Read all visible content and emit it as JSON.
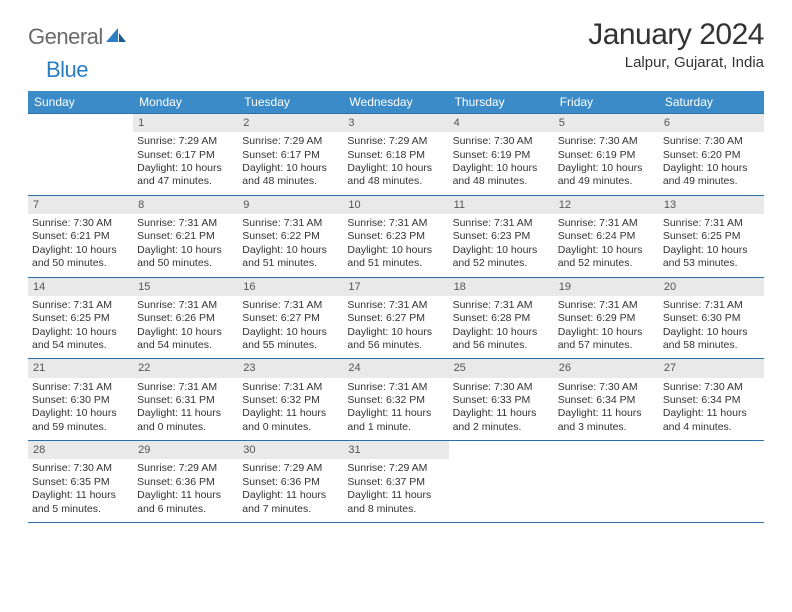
{
  "brand": {
    "name_a": "General",
    "name_b": "Blue"
  },
  "title": "January 2024",
  "location": "Lalpur, Gujarat, India",
  "colors": {
    "header_bg": "#3b8bc8",
    "header_fg": "#ffffff",
    "rule": "#2a6fa5",
    "daynum_bg": "#e9e9e9",
    "logo_gray": "#6b6b6b",
    "logo_blue": "#2a7ec5"
  },
  "day_headers": [
    "Sunday",
    "Monday",
    "Tuesday",
    "Wednesday",
    "Thursday",
    "Friday",
    "Saturday"
  ],
  "weeks": [
    [
      {
        "day": "",
        "lines": []
      },
      {
        "day": "1",
        "lines": [
          "Sunrise: 7:29 AM",
          "Sunset: 6:17 PM",
          "Daylight: 10 hours",
          "and 47 minutes."
        ]
      },
      {
        "day": "2",
        "lines": [
          "Sunrise: 7:29 AM",
          "Sunset: 6:17 PM",
          "Daylight: 10 hours",
          "and 48 minutes."
        ]
      },
      {
        "day": "3",
        "lines": [
          "Sunrise: 7:29 AM",
          "Sunset: 6:18 PM",
          "Daylight: 10 hours",
          "and 48 minutes."
        ]
      },
      {
        "day": "4",
        "lines": [
          "Sunrise: 7:30 AM",
          "Sunset: 6:19 PM",
          "Daylight: 10 hours",
          "and 48 minutes."
        ]
      },
      {
        "day": "5",
        "lines": [
          "Sunrise: 7:30 AM",
          "Sunset: 6:19 PM",
          "Daylight: 10 hours",
          "and 49 minutes."
        ]
      },
      {
        "day": "6",
        "lines": [
          "Sunrise: 7:30 AM",
          "Sunset: 6:20 PM",
          "Daylight: 10 hours",
          "and 49 minutes."
        ]
      }
    ],
    [
      {
        "day": "7",
        "lines": [
          "Sunrise: 7:30 AM",
          "Sunset: 6:21 PM",
          "Daylight: 10 hours",
          "and 50 minutes."
        ]
      },
      {
        "day": "8",
        "lines": [
          "Sunrise: 7:31 AM",
          "Sunset: 6:21 PM",
          "Daylight: 10 hours",
          "and 50 minutes."
        ]
      },
      {
        "day": "9",
        "lines": [
          "Sunrise: 7:31 AM",
          "Sunset: 6:22 PM",
          "Daylight: 10 hours",
          "and 51 minutes."
        ]
      },
      {
        "day": "10",
        "lines": [
          "Sunrise: 7:31 AM",
          "Sunset: 6:23 PM",
          "Daylight: 10 hours",
          "and 51 minutes."
        ]
      },
      {
        "day": "11",
        "lines": [
          "Sunrise: 7:31 AM",
          "Sunset: 6:23 PM",
          "Daylight: 10 hours",
          "and 52 minutes."
        ]
      },
      {
        "day": "12",
        "lines": [
          "Sunrise: 7:31 AM",
          "Sunset: 6:24 PM",
          "Daylight: 10 hours",
          "and 52 minutes."
        ]
      },
      {
        "day": "13",
        "lines": [
          "Sunrise: 7:31 AM",
          "Sunset: 6:25 PM",
          "Daylight: 10 hours",
          "and 53 minutes."
        ]
      }
    ],
    [
      {
        "day": "14",
        "lines": [
          "Sunrise: 7:31 AM",
          "Sunset: 6:25 PM",
          "Daylight: 10 hours",
          "and 54 minutes."
        ]
      },
      {
        "day": "15",
        "lines": [
          "Sunrise: 7:31 AM",
          "Sunset: 6:26 PM",
          "Daylight: 10 hours",
          "and 54 minutes."
        ]
      },
      {
        "day": "16",
        "lines": [
          "Sunrise: 7:31 AM",
          "Sunset: 6:27 PM",
          "Daylight: 10 hours",
          "and 55 minutes."
        ]
      },
      {
        "day": "17",
        "lines": [
          "Sunrise: 7:31 AM",
          "Sunset: 6:27 PM",
          "Daylight: 10 hours",
          "and 56 minutes."
        ]
      },
      {
        "day": "18",
        "lines": [
          "Sunrise: 7:31 AM",
          "Sunset: 6:28 PM",
          "Daylight: 10 hours",
          "and 56 minutes."
        ]
      },
      {
        "day": "19",
        "lines": [
          "Sunrise: 7:31 AM",
          "Sunset: 6:29 PM",
          "Daylight: 10 hours",
          "and 57 minutes."
        ]
      },
      {
        "day": "20",
        "lines": [
          "Sunrise: 7:31 AM",
          "Sunset: 6:30 PM",
          "Daylight: 10 hours",
          "and 58 minutes."
        ]
      }
    ],
    [
      {
        "day": "21",
        "lines": [
          "Sunrise: 7:31 AM",
          "Sunset: 6:30 PM",
          "Daylight: 10 hours",
          "and 59 minutes."
        ]
      },
      {
        "day": "22",
        "lines": [
          "Sunrise: 7:31 AM",
          "Sunset: 6:31 PM",
          "Daylight: 11 hours",
          "and 0 minutes."
        ]
      },
      {
        "day": "23",
        "lines": [
          "Sunrise: 7:31 AM",
          "Sunset: 6:32 PM",
          "Daylight: 11 hours",
          "and 0 minutes."
        ]
      },
      {
        "day": "24",
        "lines": [
          "Sunrise: 7:31 AM",
          "Sunset: 6:32 PM",
          "Daylight: 11 hours",
          "and 1 minute."
        ]
      },
      {
        "day": "25",
        "lines": [
          "Sunrise: 7:30 AM",
          "Sunset: 6:33 PM",
          "Daylight: 11 hours",
          "and 2 minutes."
        ]
      },
      {
        "day": "26",
        "lines": [
          "Sunrise: 7:30 AM",
          "Sunset: 6:34 PM",
          "Daylight: 11 hours",
          "and 3 minutes."
        ]
      },
      {
        "day": "27",
        "lines": [
          "Sunrise: 7:30 AM",
          "Sunset: 6:34 PM",
          "Daylight: 11 hours",
          "and 4 minutes."
        ]
      }
    ],
    [
      {
        "day": "28",
        "lines": [
          "Sunrise: 7:30 AM",
          "Sunset: 6:35 PM",
          "Daylight: 11 hours",
          "and 5 minutes."
        ]
      },
      {
        "day": "29",
        "lines": [
          "Sunrise: 7:29 AM",
          "Sunset: 6:36 PM",
          "Daylight: 11 hours",
          "and 6 minutes."
        ]
      },
      {
        "day": "30",
        "lines": [
          "Sunrise: 7:29 AM",
          "Sunset: 6:36 PM",
          "Daylight: 11 hours",
          "and 7 minutes."
        ]
      },
      {
        "day": "31",
        "lines": [
          "Sunrise: 7:29 AM",
          "Sunset: 6:37 PM",
          "Daylight: 11 hours",
          "and 8 minutes."
        ]
      },
      {
        "day": "",
        "lines": []
      },
      {
        "day": "",
        "lines": []
      },
      {
        "day": "",
        "lines": []
      }
    ]
  ]
}
